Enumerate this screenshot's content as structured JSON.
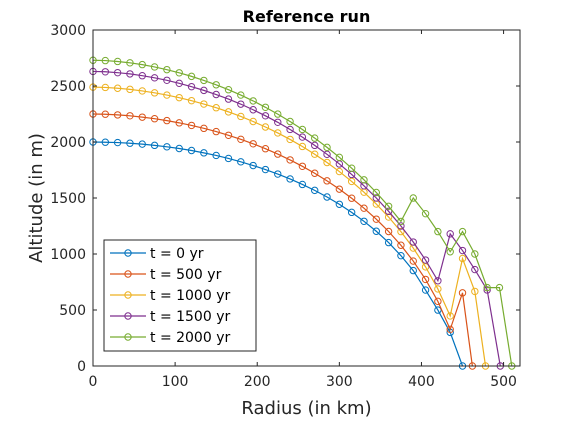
{
  "chart_data": {
    "type": "line",
    "title": "Reference run",
    "xlabel": "Radius (in km)",
    "ylabel": "Altitude (in m)",
    "xlim": [
      0,
      520
    ],
    "ylim": [
      0,
      3000
    ],
    "xticks": [
      0,
      100,
      200,
      300,
      400,
      500
    ],
    "yticks": [
      0,
      500,
      1000,
      1500,
      2000,
      2500,
      3000
    ],
    "grid": false,
    "legend_position": "bottom-left",
    "marker": "circle-open",
    "series": [
      {
        "name": "t = 0 yr",
        "color": "#0072BD",
        "x": [
          0,
          15,
          30,
          45,
          60,
          75,
          90,
          105,
          120,
          135,
          150,
          165,
          180,
          195,
          210,
          225,
          240,
          255,
          270,
          285,
          300,
          315,
          330,
          345,
          360,
          375,
          390,
          405,
          420,
          435,
          450
        ],
        "y": [
          2000,
          1998,
          1995,
          1989,
          1981,
          1970,
          1957,
          1942,
          1924,
          1903,
          1880,
          1853,
          1823,
          1790,
          1754,
          1714,
          1670,
          1621,
          1568,
          1509,
          1444,
          1372,
          1292,
          1203,
          1102,
          985,
          852,
          678,
          499,
          300,
          0
        ]
      },
      {
        "name": "t = 500 yr",
        "color": "#D95319",
        "x": [
          0,
          15,
          30,
          45,
          60,
          75,
          90,
          105,
          120,
          135,
          150,
          165,
          180,
          195,
          210,
          225,
          240,
          255,
          270,
          285,
          300,
          315,
          330,
          345,
          360,
          375,
          390,
          405,
          420,
          435,
          450,
          462
        ],
        "y": [
          2250,
          2248,
          2242,
          2234,
          2222,
          2208,
          2191,
          2171,
          2148,
          2122,
          2093,
          2060,
          2024,
          1984,
          1940,
          1892,
          1840,
          1783,
          1721,
          1653,
          1579,
          1498,
          1409,
          1311,
          1201,
          1078,
          937,
          773,
          577,
          327,
          653,
          0
        ]
      },
      {
        "name": "t = 1000 yr",
        "color": "#EDB120",
        "x": [
          0,
          15,
          30,
          45,
          60,
          75,
          90,
          105,
          120,
          135,
          150,
          165,
          180,
          195,
          210,
          225,
          240,
          255,
          270,
          285,
          300,
          315,
          330,
          345,
          360,
          375,
          390,
          405,
          420,
          435,
          450,
          465,
          478
        ],
        "y": [
          2490,
          2487,
          2480,
          2470,
          2456,
          2439,
          2419,
          2396,
          2369,
          2339,
          2306,
          2269,
          2228,
          2183,
          2134,
          2081,
          2023,
          1960,
          1891,
          1817,
          1736,
          1648,
          1552,
          1446,
          1330,
          1200,
          1053,
          885,
          688,
          447,
          960,
          666,
          0
        ]
      },
      {
        "name": "t = 1500 yr",
        "color": "#7E2F8E",
        "x": [
          0,
          15,
          30,
          45,
          60,
          75,
          90,
          105,
          120,
          135,
          150,
          165,
          180,
          195,
          210,
          225,
          240,
          255,
          270,
          285,
          300,
          315,
          330,
          345,
          360,
          375,
          390,
          405,
          420,
          435,
          450,
          465,
          480,
          496
        ],
        "y": [
          2630,
          2627,
          2619,
          2608,
          2592,
          2573,
          2551,
          2524,
          2494,
          2461,
          2424,
          2383,
          2338,
          2288,
          2234,
          2176,
          2112,
          2044,
          1970,
          1890,
          1804,
          1710,
          1609,
          1500,
          1381,
          1250,
          1107,
          946,
          761,
          1180,
          1031,
          861,
          679,
          0
        ]
      },
      {
        "name": "t = 2000 yr",
        "color": "#77AC30",
        "x": [
          0,
          15,
          30,
          45,
          60,
          75,
          90,
          105,
          120,
          135,
          150,
          165,
          180,
          195,
          210,
          225,
          240,
          255,
          270,
          285,
          300,
          315,
          330,
          345,
          360,
          375,
          390,
          405,
          420,
          435,
          450,
          465,
          480,
          495,
          510
        ],
        "y": [
          2730,
          2727,
          2719,
          2707,
          2691,
          2670,
          2646,
          2618,
          2586,
          2550,
          2511,
          2467,
          2419,
          2367,
          2310,
          2249,
          2183,
          2112,
          2035,
          1952,
          1863,
          1766,
          1662,
          1549,
          1426,
          1291,
          1500,
          1360,
          1200,
          1020,
          1200,
          1000,
          700,
          700,
          0
        ]
      }
    ]
  }
}
